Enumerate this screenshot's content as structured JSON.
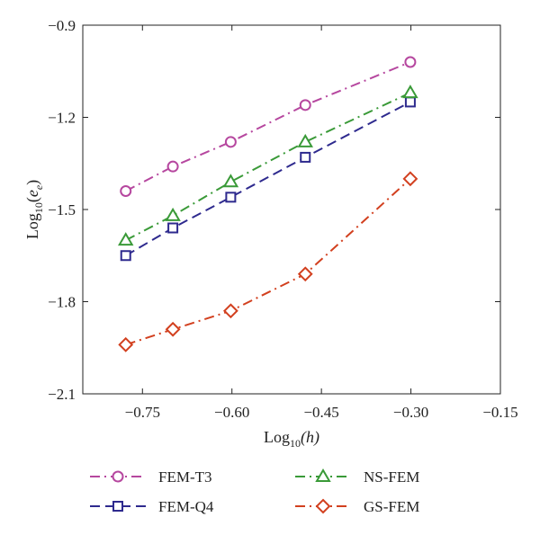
{
  "chart_data": {
    "type": "line",
    "xlabel_base": "Log",
    "xlabel_sub": "10",
    "xlabel_arg": "(h)",
    "ylabel_base": "Log",
    "ylabel_sub": "10",
    "ylabel_open": "(",
    "ylabel_var": "e",
    "ylabel_var_sub": "e",
    "ylabel_close": ")",
    "xlim": [
      -0.85,
      -0.15
    ],
    "ylim": [
      -2.1,
      -0.9
    ],
    "xticks": [
      -0.75,
      -0.6,
      -0.45,
      -0.3,
      -0.15
    ],
    "xtick_labels": [
      "−0.75",
      "−0.60",
      "−0.45",
      "−0.30",
      "−0.15"
    ],
    "yticks": [
      -2.1,
      -1.8,
      -1.5,
      -1.2,
      -0.9
    ],
    "ytick_labels": [
      "−2.1",
      "−1.8",
      "−1.5",
      "−1.2",
      "−0.9"
    ],
    "grid": false,
    "legend_position": "bottom",
    "x": [
      -0.778,
      -0.699,
      -0.602,
      -0.477,
      -0.301
    ],
    "series": [
      {
        "name": "FEM-T3",
        "values": [
          -1.44,
          -1.36,
          -1.28,
          -1.16,
          -1.02
        ],
        "color": "#b6479f",
        "marker": "circle",
        "dash": "dashdot"
      },
      {
        "name": "FEM-Q4",
        "values": [
          -1.65,
          -1.56,
          -1.46,
          -1.33,
          -1.15
        ],
        "color": "#2e2a8e",
        "marker": "square",
        "dash": "dashed"
      },
      {
        "name": "NS-FEM",
        "values": [
          -1.6,
          -1.52,
          -1.41,
          -1.28,
          -1.12
        ],
        "color": "#3a9a38",
        "marker": "triangle",
        "dash": "dashdot"
      },
      {
        "name": "GS-FEM",
        "values": [
          -1.94,
          -1.89,
          -1.83,
          -1.71,
          -1.4
        ],
        "color": "#d2401f",
        "marker": "diamond",
        "dash": "dashdot"
      }
    ]
  }
}
